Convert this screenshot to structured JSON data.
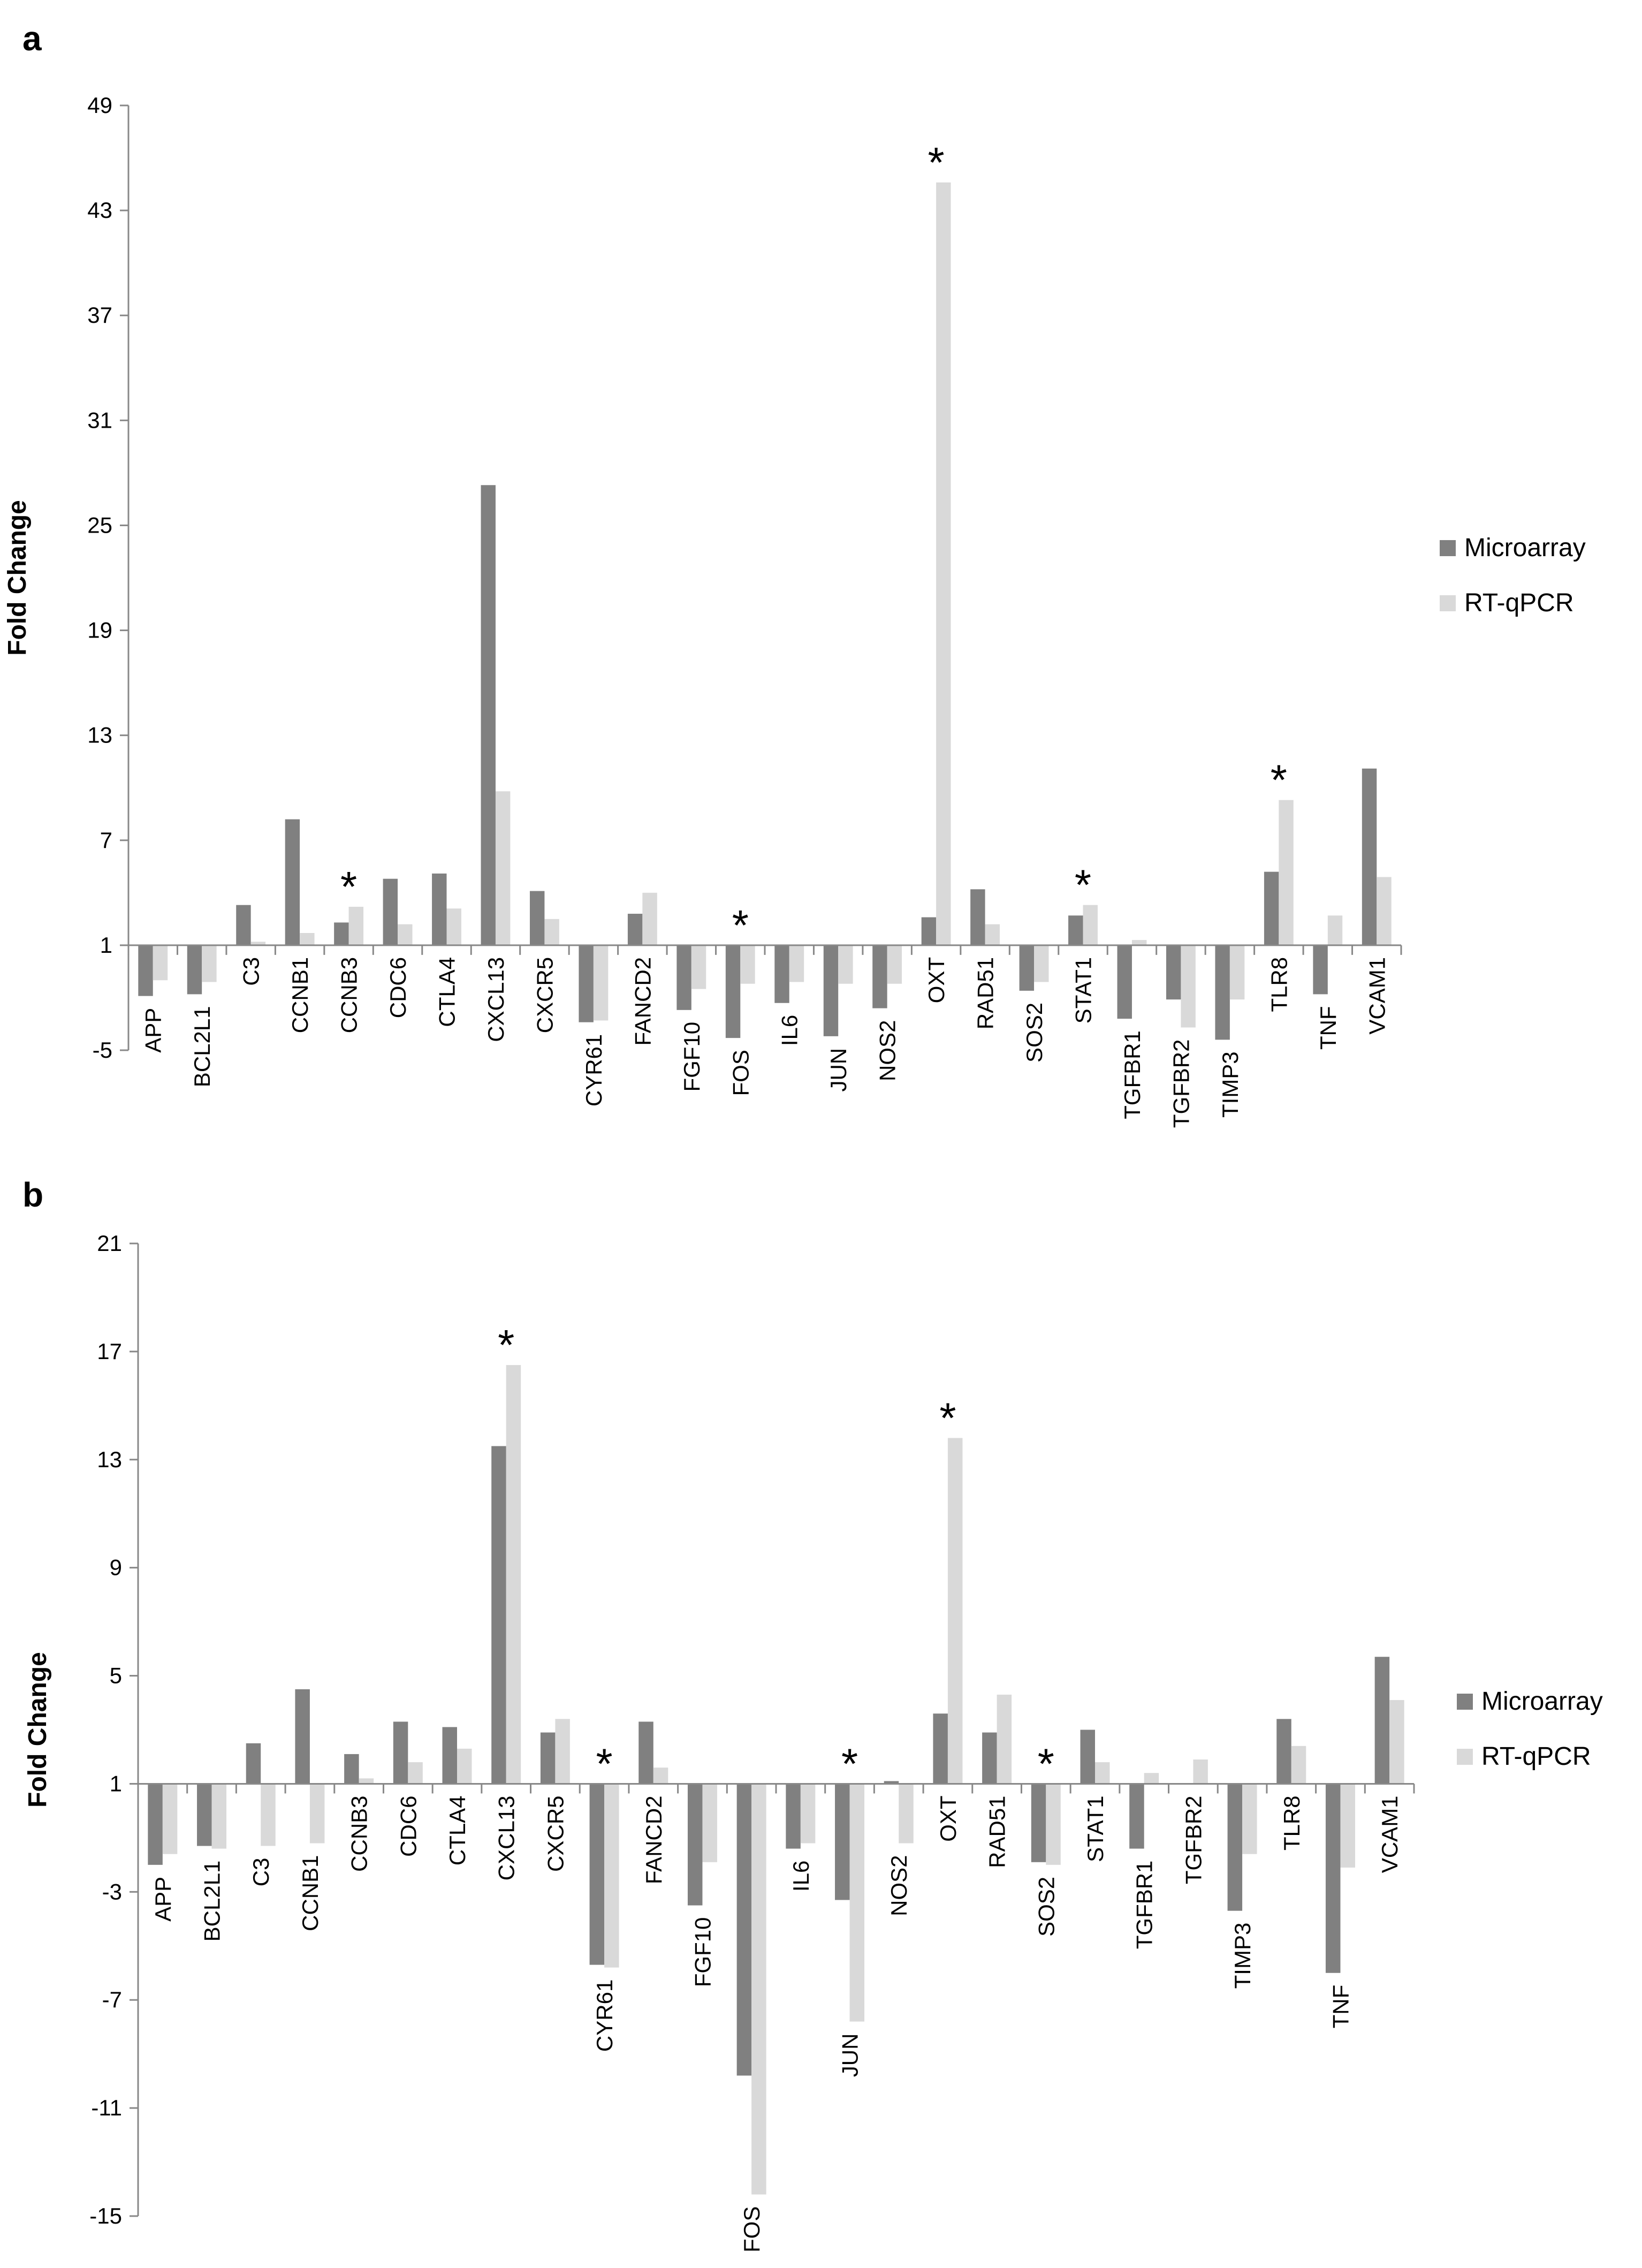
{
  "chart_data": [
    {
      "panel": "a",
      "type": "bar",
      "ylabel": "Fold Change",
      "ylim": [
        -5,
        49
      ],
      "yticks": [
        -5,
        1,
        7,
        13,
        19,
        25,
        31,
        37,
        43,
        49
      ],
      "baseline": 1,
      "categories": [
        "APP",
        "BCL2L1",
        "C3",
        "CCNB1",
        "CCNB3",
        "CDC6",
        "CTLA4",
        "CXCL13",
        "CXCR5",
        "CYR61",
        "FANCD2",
        "FGF10",
        "FOS",
        "IL6",
        "JUN",
        "NOS2",
        "OXT",
        "RAD51",
        "SOS2",
        "STAT1",
        "TGFBR1",
        "TGFBR2",
        "TIMP3",
        "TLR8",
        "TNF",
        "VCAM1"
      ],
      "series": [
        {
          "name": "Microarray",
          "color": "#808080",
          "values": [
            -1.9,
            -1.8,
            3.3,
            8.2,
            2.3,
            4.8,
            5.1,
            27.3,
            4.1,
            -3.4,
            2.8,
            -2.7,
            -4.3,
            -2.3,
            -4.2,
            -2.6,
            2.6,
            4.2,
            -1.6,
            2.7,
            -3.2,
            -2.1,
            -4.4,
            5.2,
            -1.8,
            11.1
          ]
        },
        {
          "name": "RT-qPCR",
          "color": "#d9d9d9",
          "values": [
            -1.0,
            -1.1,
            1.2,
            1.7,
            3.2,
            2.2,
            3.1,
            9.8,
            2.5,
            -3.3,
            4.0,
            -1.5,
            -1.2,
            -1.1,
            -1.2,
            -1.2,
            44.6,
            2.2,
            -1.1,
            3.3,
            1.3,
            -3.7,
            -2.1,
            9.3,
            2.7,
            4.9
          ]
        }
      ],
      "significant": [
        "CCNB3",
        "FOS",
        "OXT",
        "STAT1",
        "TLR8"
      ],
      "asterisk": "*",
      "legend_position": "right"
    },
    {
      "panel": "b",
      "type": "bar",
      "ylabel": "Fold Change",
      "ylim": [
        -15,
        21
      ],
      "yticks": [
        -15,
        -11,
        -7,
        -3,
        1,
        5,
        9,
        13,
        17,
        21
      ],
      "baseline": 1,
      "categories": [
        "APP",
        "BCL2L1",
        "C3",
        "CCNB1",
        "CCNB3",
        "CDC6",
        "CTLA4",
        "CXCL13",
        "CXCR5",
        "CYR61",
        "FANCD2",
        "FGF10",
        "FOS",
        "IL6",
        "JUN",
        "NOS2",
        "OXT",
        "RAD51",
        "SOS2",
        "STAT1",
        "TGFBR1",
        "TGFBR2",
        "TIMP3",
        "TLR8",
        "TNF",
        "VCAM1"
      ],
      "series": [
        {
          "name": "Microarray",
          "color": "#808080",
          "values": [
            -2.0,
            -1.3,
            2.5,
            4.5,
            2.1,
            3.3,
            3.1,
            13.5,
            2.9,
            -5.7,
            3.3,
            -3.5,
            -9.8,
            -1.4,
            -3.3,
            1.1,
            3.6,
            2.9,
            -1.9,
            3.0,
            -1.4,
            1.0,
            -3.7,
            3.4,
            -6.0,
            5.7
          ]
        },
        {
          "name": "RT-qPCR",
          "color": "#d9d9d9",
          "values": [
            -1.6,
            -1.4,
            -1.3,
            -1.2,
            1.2,
            1.8,
            2.3,
            16.5,
            3.4,
            -5.8,
            1.6,
            -1.9,
            -14.2,
            -1.2,
            -7.8,
            -1.2,
            13.8,
            4.3,
            -2.0,
            1.8,
            1.4,
            1.9,
            -1.6,
            2.4,
            -2.1,
            4.1
          ]
        }
      ],
      "significant": [
        "CXCL13",
        "CYR61",
        "JUN",
        "OXT",
        "SOS2"
      ],
      "asterisk": "*",
      "legend_position": "right"
    }
  ]
}
